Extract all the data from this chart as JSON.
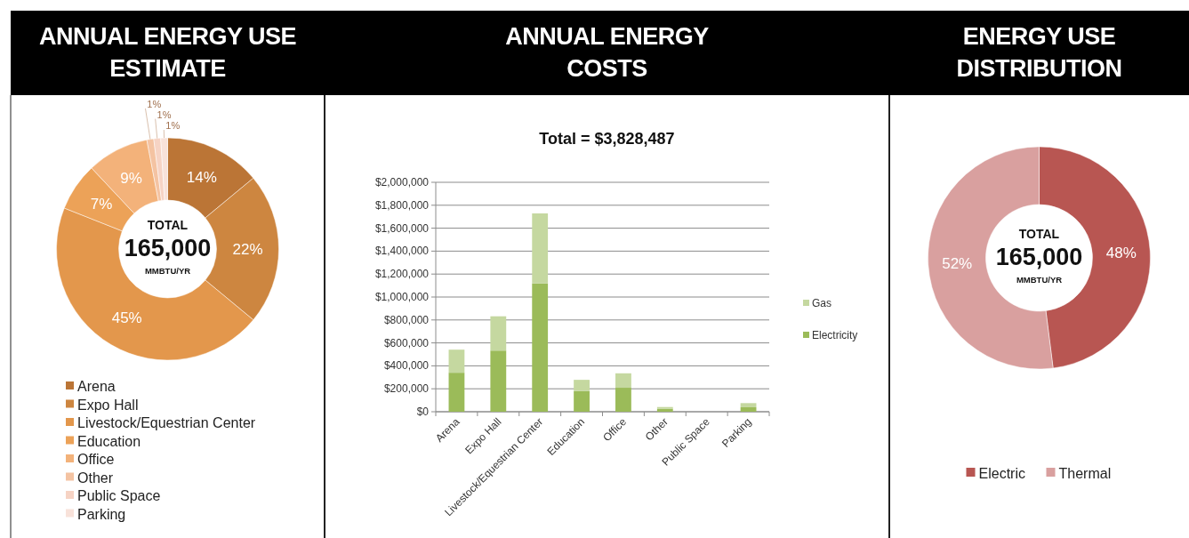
{
  "chart_data": [
    {
      "type": "donut",
      "title": "ANNUAL ENERGY USE ESTIMATE",
      "categories": [
        "Arena",
        "Expo Hall",
        "Livestock/Equestrian Center",
        "Education",
        "Office",
        "Other",
        "Public Space",
        "Parking"
      ],
      "values": [
        14,
        22,
        45,
        7,
        9,
        1,
        1,
        1
      ],
      "colors": [
        "#bb7536",
        "#cd8640",
        "#e3974c",
        "#eca258",
        "#f3b27a",
        "#f4c3a2",
        "#f6d3c4",
        "#f8e2da"
      ],
      "value_labels": [
        "14%",
        "22%",
        "45%",
        "7%",
        "9%",
        "1%",
        "1%",
        "1%"
      ],
      "legend": "bottom",
      "annotations": [
        "TOTAL",
        "165,000",
        "MMBTU/YR"
      ]
    },
    {
      "type": "bar",
      "title": "ANNUAL ENERGY COSTS",
      "subtitle": "Total = $3,828,487",
      "categories": [
        "Arena",
        "Expo Hall",
        "Livestock/Equestrian Center",
        "Education",
        "Office",
        "Other",
        "Public Space",
        "Parking"
      ],
      "stacked": true,
      "series": [
        {
          "name": "Electricity",
          "color": "#9bbb59",
          "values": [
            340000,
            533000,
            1118000,
            180000,
            209000,
            26000,
            0,
            39000
          ]
        },
        {
          "name": "Gas",
          "color": "#c5d8a0",
          "values": [
            201000,
            299000,
            611000,
            98000,
            126000,
            15000,
            0,
            36000
          ]
        }
      ],
      "ylim": [
        0,
        2000000
      ],
      "yticks": [
        {
          "value": 0,
          "label": "$0"
        },
        {
          "value": 200000,
          "label": "$200,000"
        },
        {
          "value": 400000,
          "label": "$400,000"
        },
        {
          "value": 600000,
          "label": "$600,000"
        },
        {
          "value": 800000,
          "label": "$800,000"
        },
        {
          "value": 1000000,
          "label": "$1,000,000"
        },
        {
          "value": 1200000,
          "label": "$1,200,000"
        },
        {
          "value": 1400000,
          "label": "$1,400,000"
        },
        {
          "value": 1600000,
          "label": "$1,600,000"
        },
        {
          "value": 1800000,
          "label": "$1,800,000"
        },
        {
          "value": 2000000,
          "label": "$2,000,000"
        }
      ],
      "grid": "y",
      "legend": "right"
    },
    {
      "type": "donut",
      "title": "ENERGY USE DISTRIBUTION",
      "categories": [
        "Electric",
        "Thermal"
      ],
      "values": [
        48,
        52
      ],
      "colors": [
        "#b85652",
        "#d9a09f"
      ],
      "value_labels": [
        "48%",
        "52%"
      ],
      "legend": "bottom",
      "annotations": [
        "TOTAL",
        "165,000",
        "MMBTU/YR"
      ]
    }
  ]
}
